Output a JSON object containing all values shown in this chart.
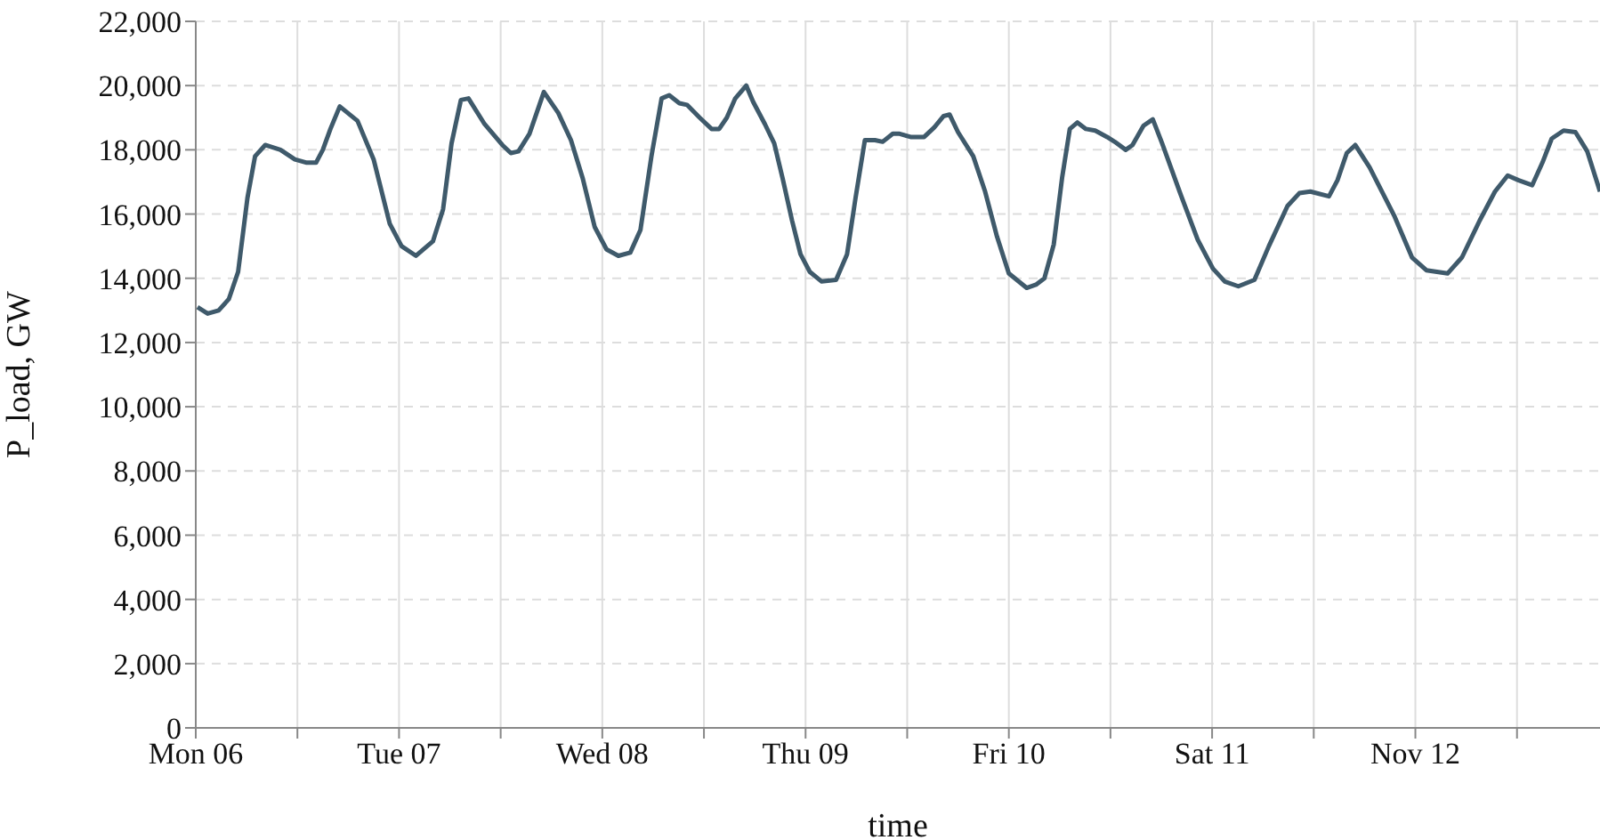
{
  "chart_data": {
    "type": "line",
    "xlabel": "time",
    "ylabel": "P_load, GW",
    "xlim": [
      "--11-06T00:00",
      "--11-12T21:48"
    ],
    "ylim": [
      0,
      22000
    ],
    "xticks": [
      {
        "value": "--11-06T00:00",
        "label": "Mon 06"
      },
      {
        "value": "--11-06T12:00",
        "label": null
      },
      {
        "value": "--11-07T00:00",
        "label": "Tue 07"
      },
      {
        "value": "--11-07T12:00",
        "label": null
      },
      {
        "value": "--11-08T00:00",
        "label": "Wed 08"
      },
      {
        "value": "--11-08T12:00",
        "label": null
      },
      {
        "value": "--11-09T00:00",
        "label": "Thu 09"
      },
      {
        "value": "--11-09T12:00",
        "label": null
      },
      {
        "value": "--11-10T00:00",
        "label": "Fri 10"
      },
      {
        "value": "--11-10T12:00",
        "label": null
      },
      {
        "value": "--11-11T00:00",
        "label": "Sat 11"
      },
      {
        "value": "--11-11T12:00",
        "label": null
      },
      {
        "value": "--11-12T00:00",
        "label": "Nov 12"
      },
      {
        "value": "--11-12T12:00",
        "label": null
      }
    ],
    "yticks": [
      0,
      {
        "value": 2000,
        "label": "2,000"
      },
      {
        "value": 4000,
        "label": "4,000"
      },
      {
        "value": 6000,
        "label": "6,000"
      },
      {
        "value": 8000,
        "label": "8,000"
      },
      {
        "value": 10000,
        "label": "10,000"
      },
      {
        "value": 12000,
        "label": "12,000"
      },
      {
        "value": 14000,
        "label": "14,000"
      },
      {
        "value": 16000,
        "label": "16,000"
      },
      {
        "value": 18000,
        "label": "18,000"
      },
      {
        "value": 20000,
        "label": "20,000"
      },
      {
        "value": 22000,
        "label": "22,000"
      }
    ],
    "grid": true,
    "marker": "none",
    "line_style": "solid",
    "series": [
      {
        "color": "#3f5a6b",
        "x": [
          "--11-06T00:12",
          "--11-06T01:24",
          "--11-06T02:42",
          "--11-06T03:54",
          "--11-06T05:00",
          "--11-06T06:06",
          "--11-06T07:00",
          "--11-06T08:12",
          "--11-06T10:00",
          "--11-06T11:42",
          "--11-06T13:06",
          "--11-06T14:12",
          "--11-06T15:00",
          "--11-06T15:54",
          "--11-06T17:00",
          "--11-06T19:06",
          "--11-06T21:00",
          "--11-06T22:54",
          "--11-07T00:18",
          "--11-07T02:00",
          "--11-07T04:00",
          "--11-07T05:12",
          "--11-07T06:12",
          "--11-07T07:18",
          "--11-07T08:12",
          "--11-07T10:06",
          "--11-07T12:12",
          "--11-07T13:12",
          "--11-07T14:06",
          "--11-07T15:24",
          "--11-07T17:06",
          "--11-07T18:48",
          "--11-07T20:18",
          "--11-07T21:42",
          "--11-07T23:06",
          "--11-08T00:30",
          "--11-08T01:54",
          "--11-08T03:18",
          "--11-08T04:30",
          "--11-08T05:48",
          "--11-08T07:00",
          "--11-08T07:54",
          "--11-08T09:06",
          "--11-08T10:00",
          "--11-08T11:30",
          "--11-08T12:54",
          "--11-08T13:48",
          "--11-08T14:42",
          "--11-08T15:42",
          "--11-08T17:00",
          "--11-08T17:48",
          "--11-08T19:12",
          "--11-08T20:18",
          "--11-08T21:18",
          "--11-08T22:24",
          "--11-08T23:24",
          "--11-09T00:30",
          "--11-09T01:54",
          "--11-09T03:36",
          "--11-09T04:54",
          "--11-09T05:54",
          "--11-09T07:00",
          "--11-09T08:12",
          "--11-09T09:06",
          "--11-09T10:18",
          "--11-09T11:06",
          "--11-09T12:24",
          "--11-09T14:00",
          "--11-09T15:12",
          "--11-09T16:18",
          "--11-09T17:00",
          "--11-09T18:00",
          "--11-09T19:48",
          "--11-09T21:12",
          "--11-09T22:36",
          "--11-10T00:00",
          "--11-10T02:06",
          "--11-10T03:12",
          "--11-10T04:12",
          "--11-10T05:18",
          "--11-10T06:18",
          "--11-10T07:12",
          "--11-10T08:06",
          "--11-10T09:06",
          "--11-10T10:12",
          "--11-10T11:36",
          "--11-10T12:30",
          "--11-10T13:48",
          "--11-10T14:36",
          "--11-10T15:54",
          "--11-10T17:00",
          "--11-10T18:06",
          "--11-10T20:18",
          "--11-10T22:18",
          "--11-11T00:06",
          "--11-11T01:30",
          "--11-11T03:06",
          "--11-11T05:00",
          "--11-11T06:42",
          "--11-11T08:54",
          "--11-11T10:18",
          "--11-11T11:36",
          "--11-11T13:48",
          "--11-11T14:48",
          "--11-11T15:54",
          "--11-11T16:54",
          "--11-11T18:36",
          "--11-11T21:30",
          "--11-11T23:36",
          "--11-12T01:18",
          "--11-12T03:48",
          "--11-12T05:30",
          "--11-12T07:36",
          "--11-12T09:24",
          "--11-12T10:54",
          "--11-12T12:12",
          "--11-12T13:48",
          "--11-12T15:00",
          "--11-12T16:06",
          "--11-12T17:30",
          "--11-12T18:54",
          "--11-12T20:18",
          "--11-12T21:48"
        ],
        "values": [
          13100,
          12900,
          13000,
          13350,
          14200,
          16500,
          17800,
          18150,
          18000,
          17700,
          17600,
          17600,
          18000,
          18650,
          19350,
          18900,
          17700,
          15700,
          15000,
          14700,
          15150,
          16150,
          18200,
          19550,
          19600,
          18800,
          18150,
          17900,
          17950,
          18500,
          19800,
          19150,
          18300,
          17100,
          15600,
          14900,
          14700,
          14800,
          15500,
          17800,
          19600,
          19700,
          19450,
          19400,
          19000,
          18650,
          18650,
          19000,
          19600,
          20000,
          19500,
          18800,
          18200,
          17100,
          15800,
          14750,
          14200,
          13900,
          13950,
          14750,
          16500,
          18300,
          18300,
          18250,
          18500,
          18500,
          18400,
          18400,
          18700,
          19050,
          19100,
          18550,
          17800,
          16700,
          15300,
          14150,
          13700,
          13800,
          14000,
          15050,
          17150,
          18650,
          18850,
          18650,
          18600,
          18400,
          18250,
          18000,
          18150,
          18750,
          18950,
          18200,
          16600,
          15200,
          14300,
          13900,
          13750,
          13950,
          15000,
          16250,
          16650,
          16700,
          16550,
          17050,
          17900,
          18150,
          17450,
          15950,
          14650,
          14250,
          14150,
          14650,
          15800,
          16700,
          17200,
          17050,
          16900,
          17600,
          18350,
          18600,
          18550,
          17950,
          16700
        ]
      }
    ]
  }
}
